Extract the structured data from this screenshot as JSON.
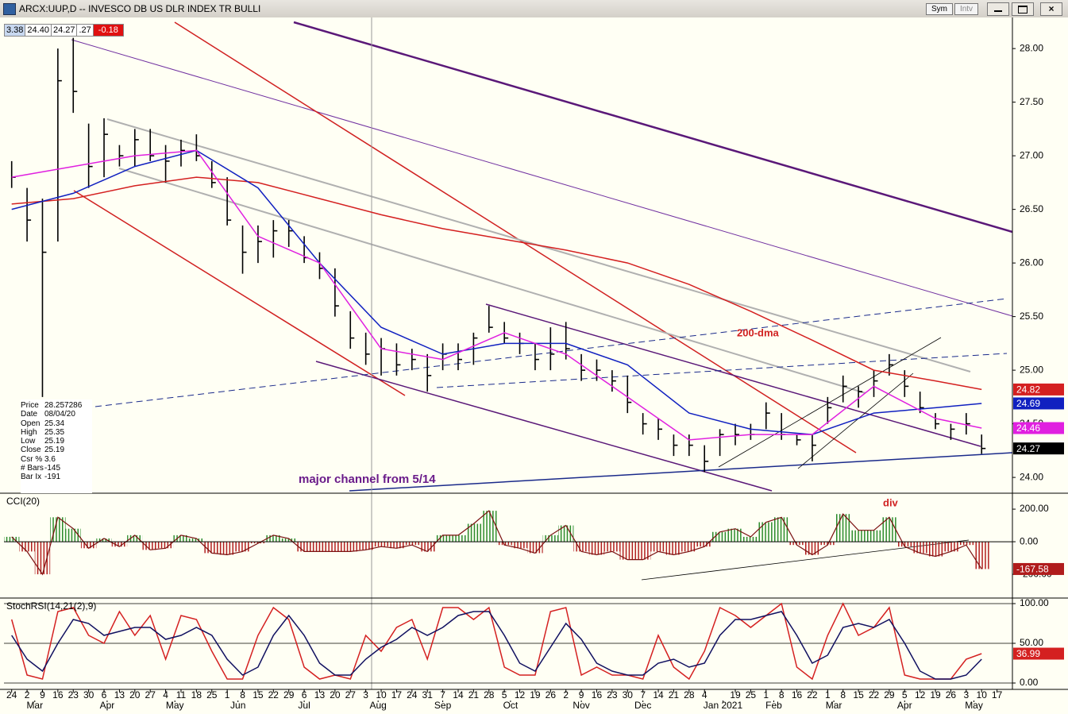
{
  "window": {
    "buttons": [
      "Sym",
      "Intv"
    ],
    "quote_box": [
      "3.38",
      "24.40",
      "24.27",
      ".27",
      "-0.18"
    ]
  },
  "info_box": [
    [
      "Price",
      "28.257286"
    ],
    [
      "Date",
      "08/04/20"
    ],
    [
      "Open",
      "25.34"
    ],
    [
      "High",
      "25.35"
    ],
    [
      "Low",
      "25.19"
    ],
    [
      "Close",
      "25.19"
    ],
    [
      "Csr %",
      "3.6"
    ],
    [
      "# Bars",
      "-145"
    ],
    [
      "Bar Ix",
      "-191"
    ]
  ],
  "chart_data": [
    {
      "type": "ohlc",
      "title": "ARCX:UUP,D -- INVESCO DB US DLR INDEX TR BULLI",
      "color": "#000000",
      "x": [
        0,
        1,
        2,
        3,
        4,
        5,
        6,
        7,
        8,
        9,
        10,
        11,
        12,
        13,
        14,
        15,
        16,
        17,
        18,
        19,
        20,
        21,
        22,
        23,
        24,
        25,
        26,
        27,
        28,
        29,
        30,
        31,
        32,
        33,
        34,
        35,
        36,
        37,
        38,
        39,
        40,
        41,
        42,
        43,
        44,
        45,
        46,
        47,
        48,
        49,
        50,
        51,
        52,
        53,
        54,
        55,
        56,
        57,
        58,
        59,
        60,
        61,
        62,
        63
      ],
      "high": [
        26.95,
        26.7,
        26.6,
        28.0,
        28.1,
        27.3,
        27.35,
        27.1,
        27.25,
        27.25,
        27.1,
        27.15,
        27.2,
        26.95,
        26.8,
        26.35,
        26.35,
        26.4,
        26.4,
        26.25,
        26.1,
        25.95,
        25.55,
        25.35,
        25.3,
        25.25,
        25.2,
        25.15,
        25.25,
        25.25,
        25.35,
        25.6,
        25.45,
        25.35,
        25.25,
        25.4,
        25.45,
        25.15,
        25.1,
        25.0,
        24.95,
        24.6,
        24.55,
        24.4,
        24.4,
        24.3,
        24.45,
        24.5,
        24.5,
        24.7,
        24.6,
        24.4,
        24.4,
        24.75,
        24.95,
        24.85,
        25.0,
        25.15,
        25.0,
        24.8,
        24.6,
        24.5,
        24.6,
        24.4
      ],
      "low": [
        26.7,
        26.2,
        24.75,
        26.2,
        27.4,
        26.7,
        26.8,
        26.9,
        26.9,
        26.95,
        26.75,
        26.9,
        26.95,
        26.7,
        26.35,
        25.9,
        26.0,
        26.05,
        26.15,
        26.0,
        25.85,
        25.5,
        25.2,
        25.05,
        24.95,
        24.95,
        25.0,
        24.8,
        25.0,
        25.0,
        25.05,
        25.35,
        25.25,
        25.15,
        25.0,
        25.0,
        25.1,
        24.9,
        24.9,
        24.8,
        24.6,
        24.4,
        24.35,
        24.2,
        24.2,
        24.05,
        24.2,
        24.3,
        24.35,
        24.45,
        24.35,
        24.3,
        24.15,
        24.5,
        24.7,
        24.65,
        24.75,
        24.95,
        24.75,
        24.6,
        24.45,
        24.35,
        24.4,
        24.22
      ],
      "close": [
        26.8,
        26.4,
        26.1,
        27.7,
        27.6,
        26.9,
        27.2,
        27.0,
        27.15,
        27.0,
        26.95,
        27.05,
        27.0,
        26.75,
        26.4,
        26.1,
        26.2,
        26.3,
        26.3,
        26.05,
        25.95,
        25.6,
        25.3,
        25.15,
        25.2,
        25.05,
        25.1,
        24.95,
        25.15,
        25.1,
        25.3,
        25.4,
        25.3,
        25.25,
        25.1,
        25.15,
        25.2,
        25.0,
        25.0,
        24.9,
        24.7,
        24.5,
        24.45,
        24.3,
        24.3,
        24.15,
        24.4,
        24.4,
        24.4,
        24.6,
        24.4,
        24.35,
        24.3,
        24.65,
        24.85,
        24.8,
        24.9,
        25.05,
        24.85,
        24.65,
        24.5,
        24.45,
        24.5,
        24.27
      ],
      "overlay_x": [
        0,
        4,
        8,
        12,
        16,
        20,
        24,
        28,
        32,
        36,
        40,
        44,
        48,
        52,
        56,
        60,
        63
      ],
      "overlays": [
        {
          "color": "#d42020",
          "values": [
            26.55,
            26.6,
            26.72,
            26.8,
            26.75,
            26.6,
            26.45,
            26.32,
            26.22,
            26.12,
            26.0,
            25.8,
            25.55,
            25.28,
            25.0,
            24.9,
            24.82
          ]
        },
        {
          "color": "#1020c0",
          "values": [
            26.5,
            26.65,
            26.9,
            27.05,
            26.7,
            26.0,
            25.4,
            25.15,
            25.25,
            25.25,
            25.05,
            24.6,
            24.45,
            24.4,
            24.6,
            24.65,
            24.69
          ]
        },
        {
          "color": "#e020e0",
          "values": [
            26.8,
            26.9,
            27.0,
            27.05,
            26.25,
            26.0,
            25.2,
            25.1,
            25.35,
            25.15,
            24.75,
            24.35,
            24.4,
            24.4,
            24.85,
            24.55,
            24.46
          ]
        }
      ],
      "xlim": [
        -0.5,
        65
      ],
      "ylim": [
        23.86,
        28.29
      ],
      "yticks": [
        {
          "value": 28,
          "label": "28.00"
        },
        {
          "value": 27.5,
          "label": "27.50"
        },
        {
          "value": 27,
          "label": "27.00"
        },
        {
          "value": 26.5,
          "label": "26.50"
        },
        {
          "value": 26,
          "label": "26.00"
        },
        {
          "value": 25.5,
          "label": "25.50"
        },
        {
          "value": 25,
          "label": "25.00"
        },
        {
          "value": 24.5,
          "label": "24.50"
        },
        {
          "value": 24,
          "label": "24.00"
        }
      ],
      "xticks": [
        {
          "value": 0,
          "label": "24"
        },
        {
          "value": 1,
          "label": "2"
        },
        {
          "value": 2,
          "label": "9"
        },
        {
          "value": 3,
          "label": "16"
        },
        {
          "value": 4,
          "label": "23"
        },
        {
          "value": 5,
          "label": "30"
        },
        {
          "value": 6,
          "label": "6"
        },
        {
          "value": 7,
          "label": "13"
        },
        {
          "value": 8,
          "label": "20"
        },
        {
          "value": 9,
          "label": "27"
        },
        {
          "value": 10,
          "label": "4"
        },
        {
          "value": 11,
          "label": "11"
        },
        {
          "value": 12,
          "label": "18"
        },
        {
          "value": 13,
          "label": "25"
        },
        {
          "value": 14,
          "label": "1"
        },
        {
          "value": 15,
          "label": "8"
        },
        {
          "value": 16,
          "label": "15"
        },
        {
          "value": 17,
          "label": "22"
        },
        {
          "value": 18,
          "label": "29"
        },
        {
          "value": 19,
          "label": "6"
        },
        {
          "value": 20,
          "label": "13"
        },
        {
          "value": 21,
          "label": "20"
        },
        {
          "value": 22,
          "label": "27"
        },
        {
          "value": 23,
          "label": "3"
        },
        {
          "value": 24,
          "label": "10"
        },
        {
          "value": 25,
          "label": "17"
        },
        {
          "value": 26,
          "label": "24"
        },
        {
          "value": 27,
          "label": "31"
        },
        {
          "value": 28,
          "label": "7"
        },
        {
          "value": 29,
          "label": "14"
        },
        {
          "value": 30,
          "label": "21"
        },
        {
          "value": 31,
          "label": "28"
        },
        {
          "value": 32,
          "label": "5"
        },
        {
          "value": 33,
          "label": "12"
        },
        {
          "value": 34,
          "label": "19"
        },
        {
          "value": 35,
          "label": "26"
        },
        {
          "value": 36,
          "label": "2"
        },
        {
          "value": 37,
          "label": "9"
        },
        {
          "value": 38,
          "label": "16"
        },
        {
          "value": 39,
          "label": "23"
        },
        {
          "value": 40,
          "label": "30"
        },
        {
          "value": 41,
          "label": "7"
        },
        {
          "value": 42,
          "label": "14"
        },
        {
          "value": 43,
          "label": "21"
        },
        {
          "value": 44,
          "label": "28"
        },
        {
          "value": 45,
          "label": "4"
        },
        {
          "value": 47,
          "label": "19"
        },
        {
          "value": 48,
          "label": "25"
        },
        {
          "value": 49,
          "label": "1"
        },
        {
          "value": 50,
          "label": "8"
        },
        {
          "value": 51,
          "label": "16"
        },
        {
          "value": 52,
          "label": "22"
        },
        {
          "value": 53,
          "label": "1"
        },
        {
          "value": 54,
          "label": "8"
        },
        {
          "value": 55,
          "label": "15"
        },
        {
          "value": 56,
          "label": "22"
        },
        {
          "value": 57,
          "label": "29"
        },
        {
          "value": 58,
          "label": "5"
        },
        {
          "value": 59,
          "label": "12"
        },
        {
          "value": 60,
          "label": "19"
        },
        {
          "value": 61,
          "label": "26"
        },
        {
          "value": 62,
          "label": "3"
        },
        {
          "value": 63,
          "label": "10"
        },
        {
          "value": 64,
          "label": "17"
        }
      ],
      "months": [
        {
          "value": 1.5,
          "label": "Mar"
        },
        {
          "value": 6.2,
          "label": "Apr"
        },
        {
          "value": 10.6,
          "label": "May"
        },
        {
          "value": 14.7,
          "label": "Jun"
        },
        {
          "value": 19,
          "label": "Jul"
        },
        {
          "value": 23.8,
          "label": "Aug"
        },
        {
          "value": 28,
          "label": "Sep"
        },
        {
          "value": 32.4,
          "label": "Oct"
        },
        {
          "value": 37,
          "label": "Nov"
        },
        {
          "value": 41,
          "label": "Dec"
        },
        {
          "value": 46.2,
          "label": "Jan 2021"
        },
        {
          "value": 49.5,
          "label": "Feb"
        },
        {
          "value": 53.4,
          "label": "Mar"
        },
        {
          "value": 58,
          "label": "Apr"
        },
        {
          "value": 62.5,
          "label": "May"
        }
      ],
      "annotations": [
        "200-dma",
        "major channel from 5/14"
      ]
    },
    {
      "type": "cci",
      "title": "CCI(20)",
      "up_color": "#2a8a2a",
      "down_color": "#b01c1c",
      "line_color": "#7a1010",
      "x": [
        0,
        1,
        2,
        3,
        4,
        5,
        6,
        7,
        8,
        9,
        10,
        11,
        12,
        13,
        14,
        15,
        16,
        17,
        18,
        19,
        20,
        21,
        22,
        23,
        24,
        25,
        26,
        27,
        28,
        29,
        30,
        31,
        32,
        33,
        34,
        35,
        36,
        37,
        38,
        39,
        40,
        41,
        42,
        43,
        44,
        45,
        46,
        47,
        48,
        49,
        50,
        51,
        52,
        53,
        54,
        55,
        56,
        57,
        58,
        59,
        60,
        61,
        62,
        63
      ],
      "values": [
        30,
        -60,
        -200,
        150,
        80,
        -40,
        20,
        -30,
        40,
        -50,
        -40,
        40,
        20,
        -70,
        -80,
        -60,
        -10,
        40,
        20,
        -60,
        -60,
        -60,
        -60,
        -50,
        -30,
        -40,
        -20,
        -60,
        40,
        40,
        110,
        190,
        -20,
        -40,
        -70,
        40,
        100,
        -60,
        -80,
        -60,
        -110,
        -110,
        -60,
        -80,
        -60,
        -30,
        60,
        80,
        30,
        120,
        150,
        -20,
        -80,
        -20,
        170,
        70,
        70,
        150,
        -30,
        -70,
        -90,
        -60,
        -20,
        -167.58
      ],
      "ylim": [
        -341,
        293
      ],
      "yticks": [
        {
          "value": 200,
          "label": "200.00"
        },
        {
          "value": 0,
          "label": "0.00"
        },
        {
          "value": -200,
          "label": "-200.00"
        }
      ],
      "annotations": [
        "div"
      ]
    },
    {
      "type": "line",
      "title": "StochRSI(14,21(2),9)",
      "grid": true,
      "x": [
        0,
        1,
        2,
        3,
        4,
        5,
        6,
        7,
        8,
        9,
        10,
        11,
        12,
        13,
        14,
        15,
        16,
        17,
        18,
        19,
        20,
        21,
        22,
        23,
        24,
        25,
        26,
        27,
        28,
        29,
        30,
        31,
        32,
        33,
        34,
        35,
        36,
        37,
        38,
        39,
        40,
        41,
        42,
        43,
        44,
        45,
        46,
        47,
        48,
        49,
        50,
        51,
        52,
        53,
        54,
        55,
        56,
        57,
        58,
        59,
        60,
        61,
        62,
        63
      ],
      "series": [
        {
          "color": "#d42020",
          "values": [
            80,
            10,
            5,
            90,
            95,
            60,
            50,
            90,
            60,
            85,
            30,
            85,
            80,
            40,
            5,
            5,
            60,
            95,
            80,
            20,
            5,
            10,
            5,
            60,
            40,
            70,
            80,
            30,
            95,
            95,
            80,
            95,
            20,
            10,
            10,
            90,
            95,
            10,
            20,
            10,
            10,
            5,
            60,
            20,
            5,
            40,
            95,
            85,
            70,
            85,
            100,
            20,
            5,
            60,
            100,
            60,
            70,
            95,
            10,
            5,
            5,
            5,
            30,
            36.99
          ]
        },
        {
          "color": "#101060",
          "values": [
            60,
            30,
            15,
            50,
            80,
            75,
            60,
            65,
            70,
            70,
            55,
            60,
            70,
            60,
            30,
            10,
            20,
            60,
            85,
            60,
            25,
            10,
            10,
            30,
            45,
            55,
            70,
            60,
            70,
            85,
            90,
            90,
            60,
            25,
            15,
            45,
            75,
            55,
            25,
            15,
            10,
            10,
            25,
            30,
            20,
            25,
            60,
            80,
            80,
            85,
            90,
            60,
            25,
            35,
            70,
            75,
            70,
            80,
            50,
            15,
            5,
            5,
            10,
            30
          ]
        }
      ],
      "ylim": [
        -8,
        106
      ],
      "yticks": [
        {
          "value": 100,
          "label": "100.00"
        },
        {
          "value": 50,
          "label": "50.00"
        },
        {
          "value": 0,
          "label": "0.00"
        }
      ]
    }
  ]
}
